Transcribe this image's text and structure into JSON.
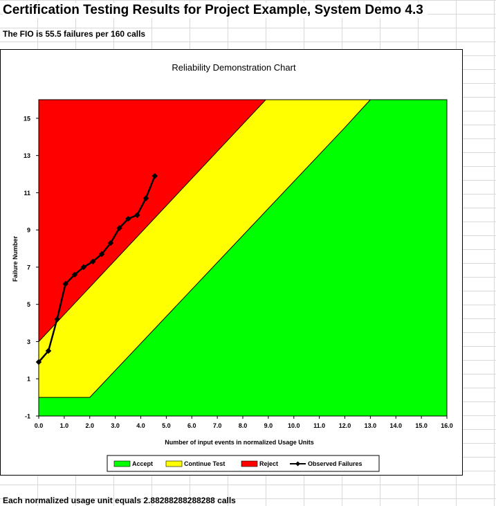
{
  "sheet": {
    "title": "Certification Testing Results for Project Example, System Demo 4.3",
    "fio_text": "The FIO is 55.5 failures per 160 calls",
    "footer_text": "Each normalized usage unit equals 2.88288288288288 calls"
  },
  "colors": {
    "accept": "#00ff00",
    "continue": "#ffff00",
    "reject": "#ff0000",
    "observed": "#000000"
  },
  "chart_data": {
    "type": "area",
    "title": "Reliability Demonstration Chart",
    "xlabel": "Number of input events in normalized Usage Units",
    "ylabel": "Failure Number",
    "xlim": [
      0,
      16
    ],
    "ylim": [
      -1,
      16
    ],
    "x_ticks": [
      "0.0",
      "1.0",
      "2.0",
      "3.0",
      "4.0",
      "5.0",
      "6.0",
      "7.0",
      "8.0",
      "9.0",
      "10.0",
      "11.0",
      "12.0",
      "13.0",
      "14.0",
      "15.0",
      "16.0"
    ],
    "x_tick_values": [
      0,
      1,
      2,
      3,
      4,
      5,
      6,
      7,
      8,
      9,
      10,
      11,
      12,
      13,
      14,
      15,
      16
    ],
    "y_ticks": [
      "-1",
      "1",
      "3",
      "5",
      "7",
      "9",
      "11",
      "13",
      "15"
    ],
    "y_tick_values": [
      -1,
      1,
      3,
      5,
      7,
      9,
      11,
      13,
      15
    ],
    "grid": false,
    "legend_position": "bottom",
    "regions": [
      {
        "name": "Accept",
        "color": "#00ff00"
      },
      {
        "name": "Continue Test",
        "color": "#ffff00"
      },
      {
        "name": "Reject",
        "color": "#ff0000"
      }
    ],
    "reject_boundary": {
      "x": [
        0,
        8.9
      ],
      "y": [
        3.0,
        16
      ]
    },
    "accept_boundary": {
      "x": [
        0,
        2.0,
        12.0,
        13.0
      ],
      "y": [
        0,
        0,
        14.5,
        16
      ]
    },
    "series": [
      {
        "name": "Observed Failures",
        "x": [
          0.0,
          0.38,
          0.72,
          1.05,
          1.41,
          1.76,
          2.12,
          2.47,
          2.82,
          3.16,
          3.51,
          3.86,
          4.2,
          4.55
        ],
        "y": [
          1.9,
          2.5,
          4.2,
          6.1,
          6.6,
          7.0,
          7.3,
          7.7,
          8.3,
          9.1,
          9.6,
          9.8,
          10.7,
          11.9
        ]
      }
    ]
  }
}
